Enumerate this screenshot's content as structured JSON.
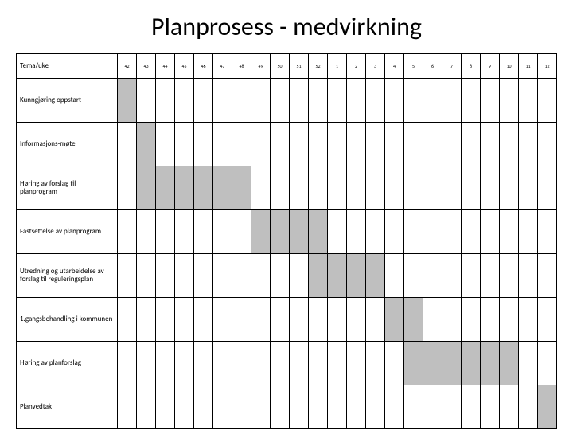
{
  "title": "Planprosess - medvirkning",
  "header_label": "Tema/uke",
  "weeks": [
    "42",
    "43",
    "44",
    "45",
    "46",
    "47",
    "48",
    "49",
    "50",
    "51",
    "52",
    "1",
    "2",
    "3",
    "4",
    "5",
    "6",
    "7",
    "8",
    "9",
    "10",
    "11",
    "12"
  ],
  "rows": [
    {
      "label": "Kunngjøring oppstart",
      "fill": [
        1,
        0,
        0,
        0,
        0,
        0,
        0,
        0,
        0,
        0,
        0,
        0,
        0,
        0,
        0,
        0,
        0,
        0,
        0,
        0,
        0,
        0,
        0
      ]
    },
    {
      "label": "Informasjons-møte",
      "fill": [
        0,
        1,
        0,
        0,
        0,
        0,
        0,
        0,
        0,
        0,
        0,
        0,
        0,
        0,
        0,
        0,
        0,
        0,
        0,
        0,
        0,
        0,
        0
      ]
    },
    {
      "label": "Høring av forslag til planprogram",
      "fill": [
        0,
        1,
        1,
        1,
        1,
        1,
        1,
        0,
        0,
        0,
        0,
        0,
        0,
        0,
        0,
        0,
        0,
        0,
        0,
        0,
        0,
        0,
        0
      ]
    },
    {
      "label": "Fastsettelse av planprogram",
      "fill": [
        0,
        0,
        0,
        0,
        0,
        0,
        0,
        1,
        1,
        1,
        1,
        0,
        0,
        0,
        0,
        0,
        0,
        0,
        0,
        0,
        0,
        0,
        0
      ]
    },
    {
      "label": "Utredning og utarbeidelse av forslag til reguleringsplan",
      "fill": [
        0,
        0,
        0,
        0,
        0,
        0,
        0,
        0,
        0,
        0,
        1,
        1,
        1,
        1,
        0,
        0,
        0,
        0,
        0,
        0,
        0,
        0,
        0
      ]
    },
    {
      "label": "1.gangsbehandling i kommunen",
      "fill": [
        0,
        0,
        0,
        0,
        0,
        0,
        0,
        0,
        0,
        0,
        0,
        0,
        0,
        0,
        1,
        1,
        0,
        0,
        0,
        0,
        0,
        0,
        0
      ]
    },
    {
      "label": "Høring av planforslag",
      "fill": [
        0,
        0,
        0,
        0,
        0,
        0,
        0,
        0,
        0,
        0,
        0,
        0,
        0,
        0,
        0,
        1,
        1,
        1,
        1,
        1,
        1,
        0,
        0
      ]
    },
    {
      "label": "Planvedtak",
      "fill": [
        0,
        0,
        0,
        0,
        0,
        0,
        0,
        0,
        0,
        0,
        0,
        0,
        0,
        0,
        0,
        0,
        0,
        0,
        0,
        0,
        0,
        0,
        1
      ]
    }
  ],
  "colors": {
    "fill": "#bfbfbf",
    "border": "#000000",
    "background": "#ffffff",
    "text": "#000000"
  },
  "fontsize": {
    "title": 32,
    "rowhead": 9,
    "week": 6
  }
}
